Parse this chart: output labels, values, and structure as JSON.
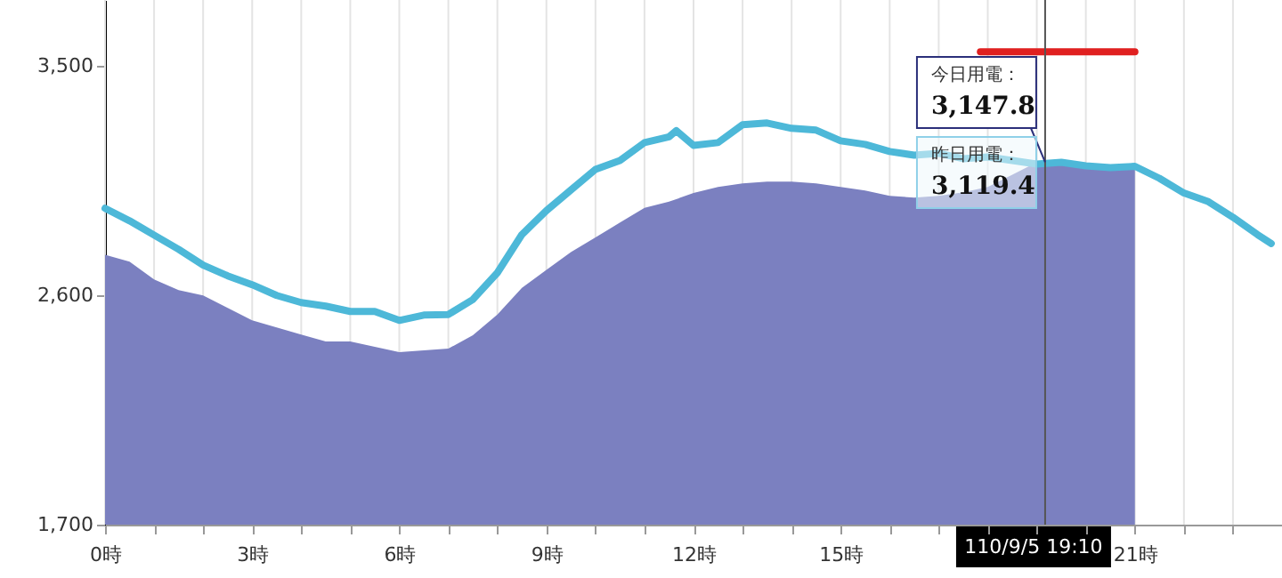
{
  "chart_data": {
    "type": "area",
    "xlim": [
      0,
      24
    ],
    "ylim": [
      1700,
      3760
    ],
    "xticks": [
      {
        "value": 0,
        "label": "0時"
      },
      {
        "value": 1,
        "label": null
      },
      {
        "value": 2,
        "label": null
      },
      {
        "value": 3,
        "label": "3時"
      },
      {
        "value": 4,
        "label": null
      },
      {
        "value": 5,
        "label": null
      },
      {
        "value": 6,
        "label": "6時"
      },
      {
        "value": 7,
        "label": null
      },
      {
        "value": 8,
        "label": null
      },
      {
        "value": 9,
        "label": "9時"
      },
      {
        "value": 10,
        "label": null
      },
      {
        "value": 11,
        "label": null
      },
      {
        "value": 12,
        "label": "12時"
      },
      {
        "value": 13,
        "label": null
      },
      {
        "value": 14,
        "label": null
      },
      {
        "value": 15,
        "label": "15時"
      },
      {
        "value": 16,
        "label": null
      },
      {
        "value": 17,
        "label": null
      },
      {
        "value": 18,
        "label": null
      },
      {
        "value": 19,
        "label": null
      },
      {
        "value": 20,
        "label": null
      },
      {
        "value": 21,
        "label": "21時"
      },
      {
        "value": 22,
        "label": null
      },
      {
        "value": 23,
        "label": null
      }
    ],
    "yticks": [
      {
        "value": 1700,
        "label": "1,700"
      },
      {
        "value": 2600,
        "label": "2,600"
      },
      {
        "value": 3500,
        "label": "3,500"
      }
    ],
    "grid": "x",
    "series": [
      {
        "color": "#7b80c0",
        "x": [
          0,
          0.5,
          1,
          1.5,
          2,
          2.5,
          3,
          3.5,
          4,
          4.5,
          5,
          5.5,
          6,
          6.5,
          7,
          7.5,
          8,
          8.5,
          9,
          9.5,
          10,
          10.5,
          11,
          11.5,
          12,
          12.5,
          13,
          13.5,
          14,
          14.5,
          15,
          15.5,
          16,
          16.5,
          17,
          17.5,
          18,
          18.5,
          19,
          19.5,
          20,
          20.5,
          21
        ],
        "values": [
          2760,
          2733,
          2663,
          2621,
          2600,
          2551,
          2502,
          2474,
          2446,
          2419,
          2419,
          2398,
          2377,
          2384,
          2391,
          2444,
          2525,
          2630,
          2700,
          2770,
          2828,
          2886,
          2944,
          2968,
          3002,
          3026,
          3040,
          3047,
          3047,
          3040,
          3026,
          3012,
          2991,
          2984,
          2991,
          3005,
          3026,
          3074,
          3123,
          3123,
          3109,
          3102,
          3095
        ]
      },
      {
        "type": "line",
        "color": "#4db8d8",
        "x": [
          0,
          0.5,
          1,
          1.5,
          2,
          2.5,
          3,
          3.5,
          4,
          4.5,
          5,
          5.5,
          6,
          6.5,
          7,
          7.5,
          8,
          8.5,
          9,
          9.5,
          10,
          10.5,
          11,
          11.5,
          11.65,
          12,
          12.5,
          13,
          13.5,
          14,
          14.5,
          15,
          15.5,
          16,
          16.5,
          17,
          17.5,
          18,
          18.5,
          19,
          19.5,
          20,
          20.5,
          21,
          21.5,
          22,
          22.5,
          23,
          23.5,
          23.78
        ],
        "values": [
          2942,
          2893,
          2837,
          2781,
          2719,
          2677,
          2642,
          2600,
          2572,
          2558,
          2537,
          2537,
          2502,
          2523,
          2525,
          2584,
          2689,
          2839,
          2933,
          3014,
          3095,
          3130,
          3200,
          3223,
          3247,
          3189,
          3200,
          3270,
          3277,
          3256,
          3249,
          3207,
          3193,
          3165,
          3151,
          3158,
          3137,
          3144,
          3130,
          3116,
          3123,
          3109,
          3102,
          3107,
          3060,
          3002,
          2968,
          2907,
          2839,
          2804
        ]
      },
      {
        "type": "line",
        "color": "#e02020",
        "x": [
          17.85,
          21
        ],
        "values": [
          3557,
          3557
        ]
      }
    ],
    "ref_lines": [
      {
        "axis": "x",
        "value": 19.17,
        "label": "110/9/5 19:10",
        "color": "#555555"
      }
    ],
    "annotations": [
      "今日用電：",
      "3,147.8",
      "昨日用電：",
      "3,119.4"
    ]
  }
}
